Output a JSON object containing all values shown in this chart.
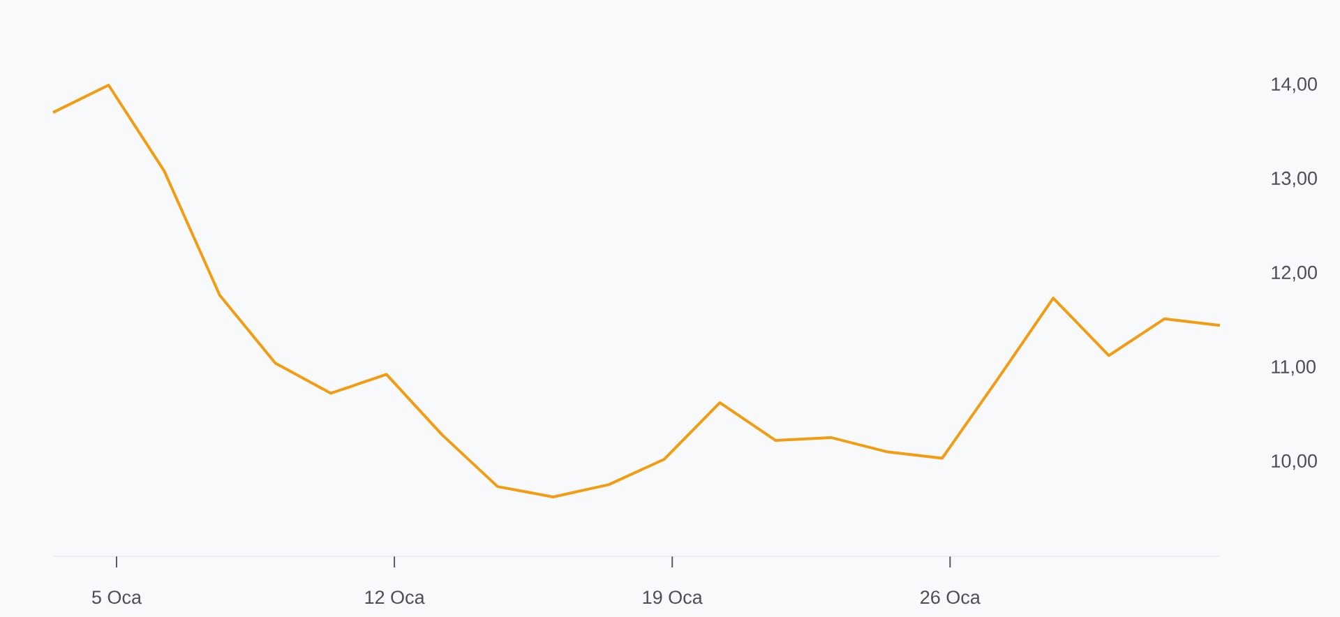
{
  "chart_data": {
    "type": "line",
    "x": [
      3.4,
      4.8,
      6.2,
      7.6,
      9.0,
      10.4,
      11.8,
      13.2,
      14.6,
      16.0,
      17.4,
      18.8,
      20.2,
      21.6,
      23.0,
      24.4,
      25.8,
      27.2,
      28.6,
      30.0,
      31.4,
      32.8
    ],
    "values": [
      13.71,
      14.0,
      13.09,
      11.77,
      11.05,
      10.73,
      10.93,
      10.29,
      9.74,
      9.63,
      9.76,
      10.03,
      10.63,
      10.23,
      10.26,
      10.11,
      10.04,
      10.88,
      11.74,
      11.13,
      11.52,
      11.45
    ],
    "color": "#f39c12",
    "xlim": [
      3.4,
      32.8
    ],
    "xticks": [
      {
        "value": 5,
        "label": "5 Oca"
      },
      {
        "value": 12,
        "label": "12 Oca"
      },
      {
        "value": 19,
        "label": "19 Oca"
      },
      {
        "value": 26,
        "label": "26 Oca"
      }
    ],
    "ylim": [
      9,
      14
    ],
    "yticks": [
      {
        "value": 10,
        "label": "10,00"
      },
      {
        "value": 11,
        "label": "11,00"
      },
      {
        "value": 12,
        "label": "12,00"
      },
      {
        "value": 13,
        "label": "13,00"
      },
      {
        "value": 14,
        "label": "14,00"
      }
    ],
    "marker": "none"
  }
}
